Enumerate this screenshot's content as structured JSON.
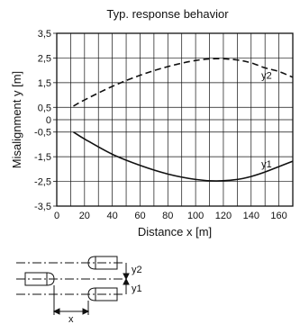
{
  "chart_data": {
    "type": "line",
    "title": "Typ. response behavior",
    "xlabel": "Distance x [m]",
    "ylabel": "Misalignment y [m]",
    "xlim": [
      0,
      170
    ],
    "ylim": [
      -3.5,
      3.5
    ],
    "grid": true,
    "x_ticks": [
      {
        "v": 0,
        "label": "0"
      },
      {
        "v": 20,
        "label": "20"
      },
      {
        "v": 40,
        "label": "40"
      },
      {
        "v": 60,
        "label": "60"
      },
      {
        "v": 80,
        "label": "80"
      },
      {
        "v": 100,
        "label": "100"
      },
      {
        "v": 120,
        "label": "120"
      },
      {
        "v": 140,
        "label": "140"
      },
      {
        "v": 160,
        "label": "160"
      }
    ],
    "y_ticks": [
      {
        "v": 3.5,
        "label": "3,5"
      },
      {
        "v": 2.5,
        "label": "2,5"
      },
      {
        "v": 1.5,
        "label": "1,5"
      },
      {
        "v": 0.5,
        "label": "0,5"
      },
      {
        "v": 0,
        "label": "0"
      },
      {
        "v": -0.5,
        "label": "-0,5"
      },
      {
        "v": -1.5,
        "label": "-1,5"
      },
      {
        "v": -2.5,
        "label": "-2,5"
      },
      {
        "v": -3.5,
        "label": "-3,5"
      }
    ],
    "series": [
      {
        "name": "y2",
        "style": "dashed",
        "x": [
          12,
          20,
          40,
          60,
          80,
          100,
          115,
          130,
          140,
          150,
          160,
          170
        ],
        "y": [
          0.55,
          0.8,
          1.35,
          1.8,
          2.15,
          2.4,
          2.47,
          2.42,
          2.3,
          2.1,
          1.95,
          1.72
        ]
      },
      {
        "name": "y1",
        "style": "solid",
        "x": [
          12,
          20,
          40,
          60,
          80,
          100,
          115,
          130,
          140,
          150,
          160,
          170
        ],
        "y": [
          -0.5,
          -0.78,
          -1.4,
          -1.85,
          -2.2,
          -2.42,
          -2.48,
          -2.42,
          -2.3,
          -2.12,
          -1.9,
          -1.68
        ]
      }
    ]
  },
  "diagram": {
    "label_y2": "y2",
    "label_y1": "y1",
    "label_x": "x"
  }
}
